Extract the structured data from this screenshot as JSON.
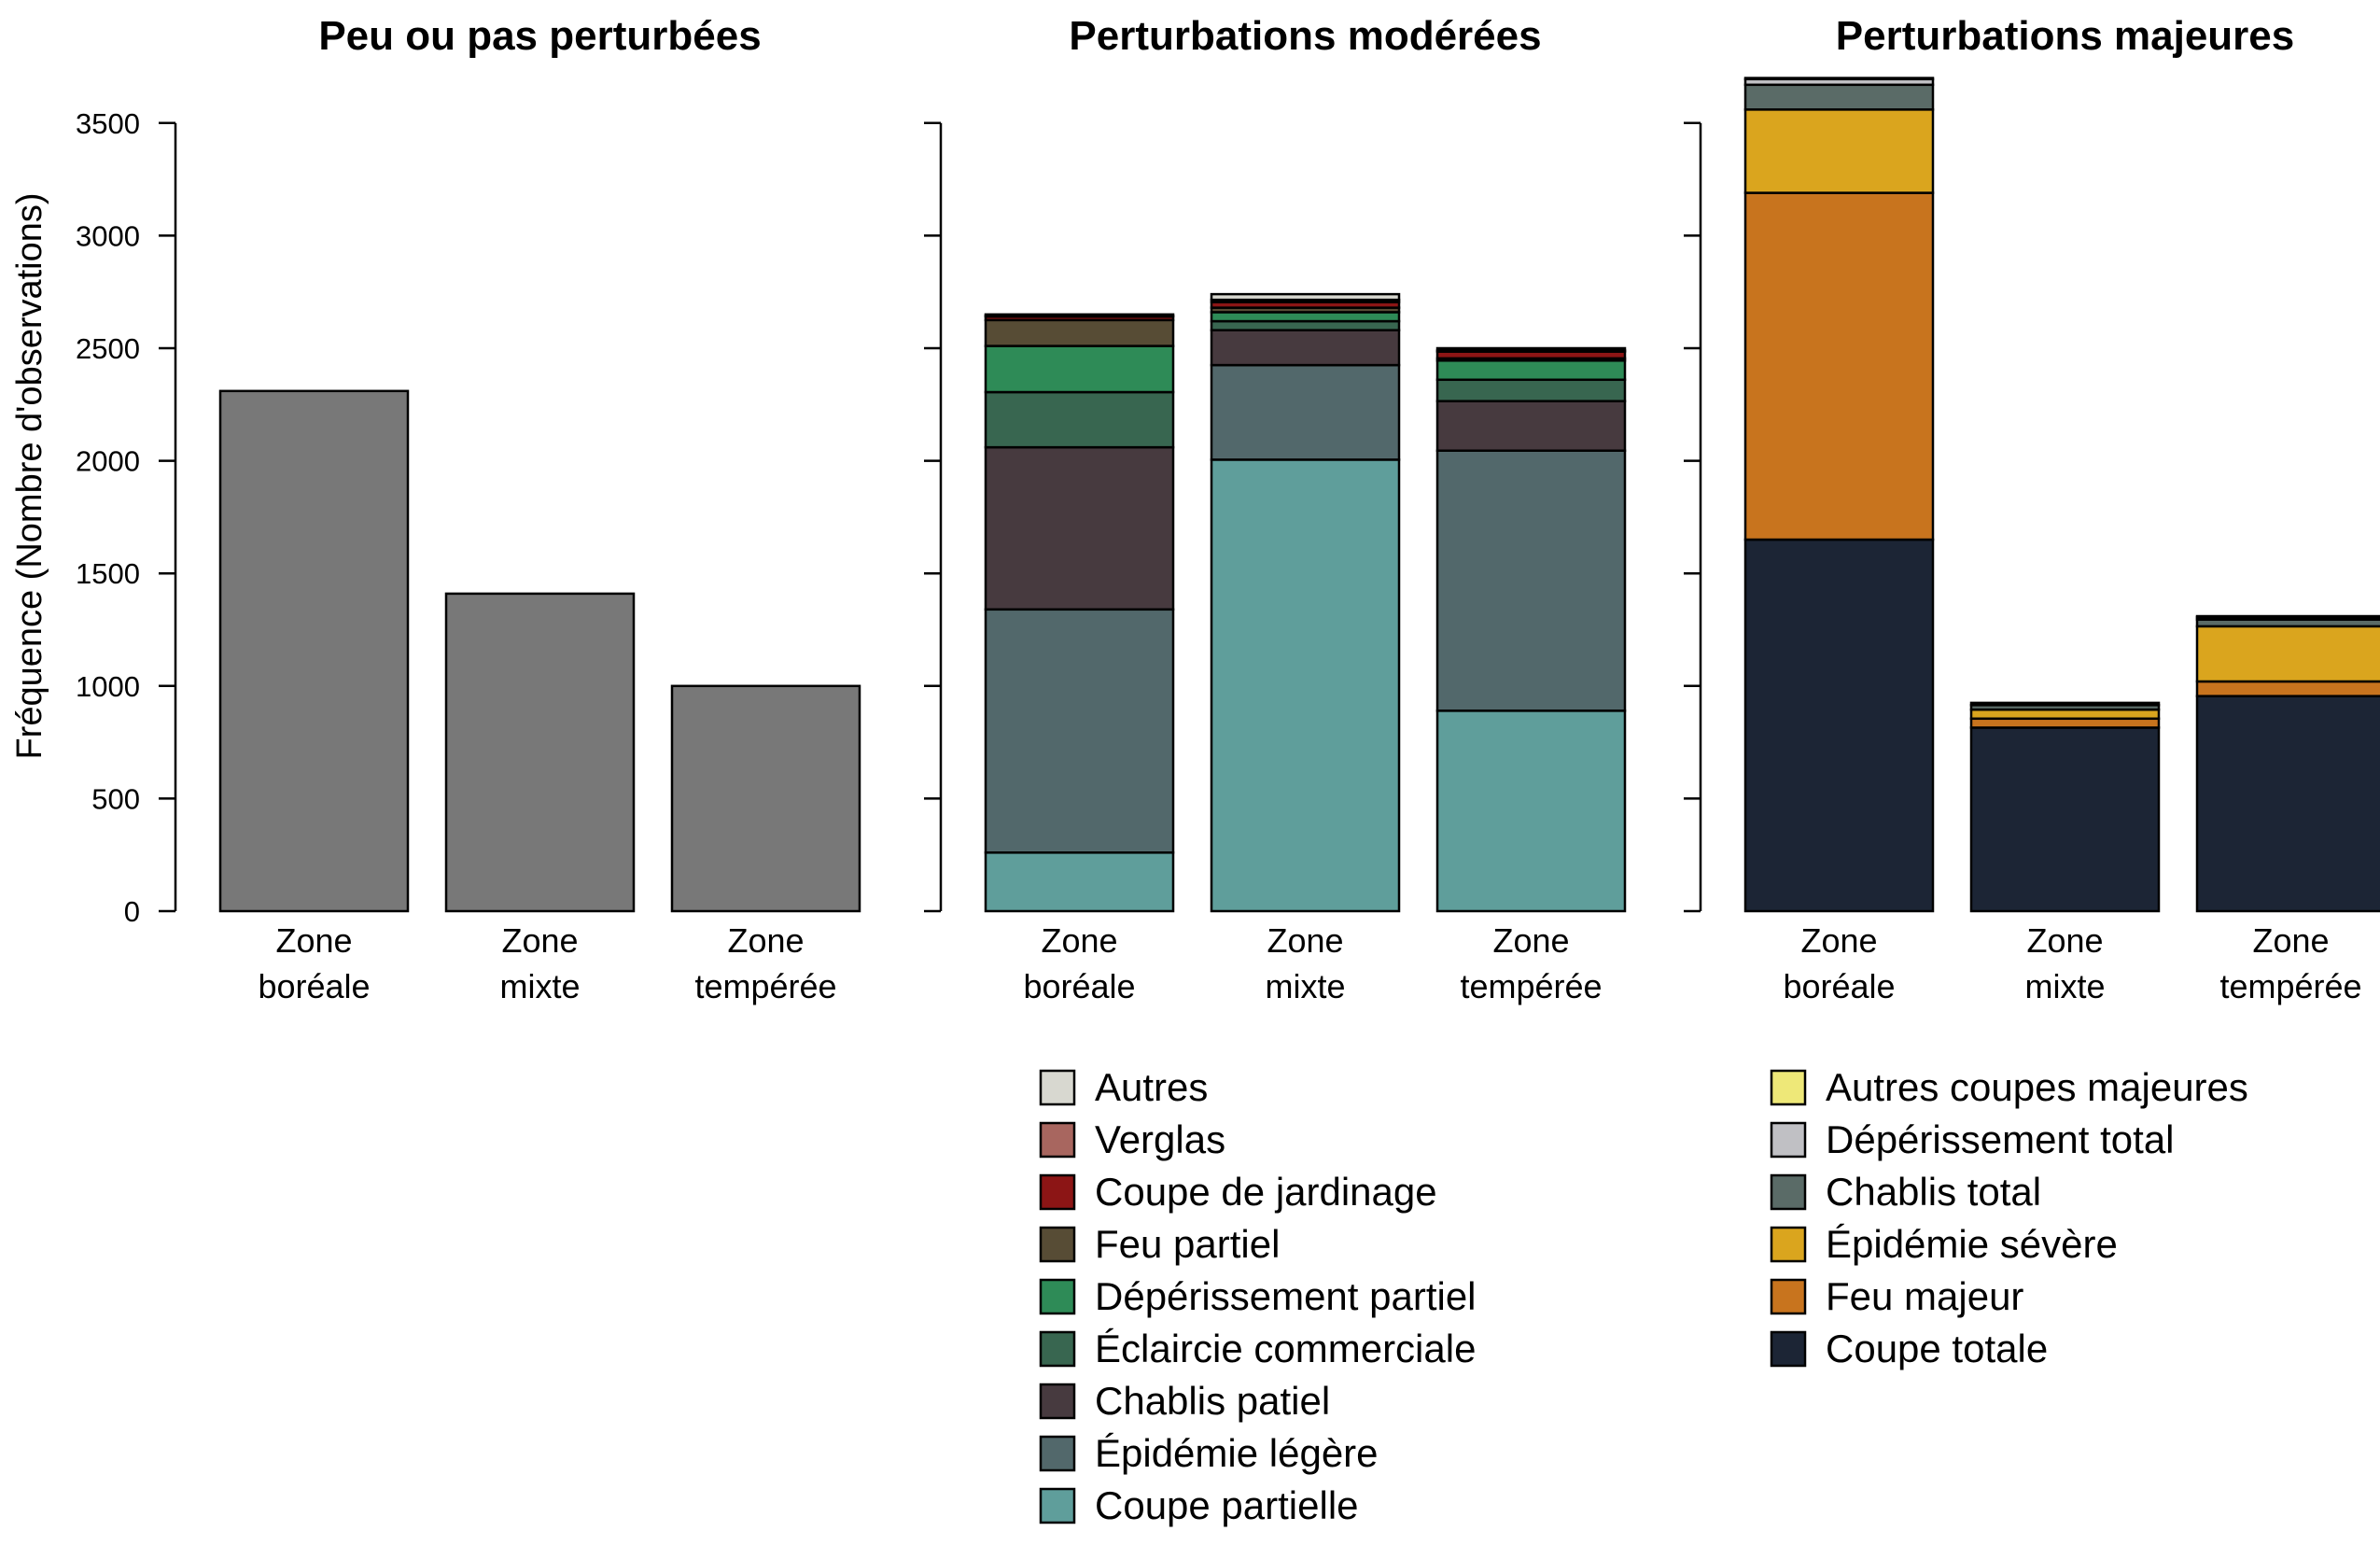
{
  "chart_data": {
    "type": "bar",
    "stacked": true,
    "ylabel": "Fréquence (Nombre d'observations)",
    "ylim": [
      0,
      3700
    ],
    "yticks": [
      0,
      500,
      1000,
      1500,
      2000,
      2500,
      3000,
      3500
    ],
    "grid": false,
    "categories": [
      [
        "Zone",
        "boréale"
      ],
      [
        "Zone",
        "mixte"
      ],
      [
        "Zone",
        "tempérée"
      ]
    ],
    "panels": [
      {
        "title": "Peu ou pas perturbées",
        "series": [
          {
            "color": "#787878",
            "values": [
              2310,
              1410,
              1000
            ]
          }
        ]
      },
      {
        "title": "Perturbations modérées",
        "series": [
          {
            "name": "Coupe partielle",
            "color": "#5f9e9b",
            "values": [
              260,
              2005,
              890
            ]
          },
          {
            "name": "Épidémie légère",
            "color": "#52686b",
            "values": [
              1080,
              420,
              1155
            ]
          },
          {
            "name": "Chablis patiel",
            "color": "#473a3f",
            "values": [
              720,
              155,
              220
            ]
          },
          {
            "name": "Éclaircie commerciale",
            "color": "#386650",
            "values": [
              245,
              40,
              95
            ]
          },
          {
            "name": "Dépérissement partiel",
            "color": "#2e8b57",
            "values": [
              205,
              40,
              85
            ]
          },
          {
            "name": "Feu partiel",
            "color": "#574c35",
            "values": [
              115,
              20,
              10
            ]
          },
          {
            "name": "Coupe de jardinage",
            "color": "#8c1515",
            "values": [
              15,
              25,
              30
            ]
          },
          {
            "name": "Verglas",
            "color": "#a8665f",
            "values": [
              5,
              10,
              5
            ]
          },
          {
            "name": "Autres",
            "color": "#d8d8d0",
            "values": [
              5,
              25,
              10
            ]
          }
        ]
      },
      {
        "title": "Perturbations majeures",
        "series": [
          {
            "name": "Coupe totale",
            "color": "#1c2535",
            "values": [
              1650,
              815,
              955
            ]
          },
          {
            "name": "Feu majeur",
            "color": "#c8741e",
            "values": [
              1540,
              40,
              65
            ]
          },
          {
            "name": "Épidémie sévère",
            "color": "#daa51e",
            "values": [
              370,
              40,
              245
            ]
          },
          {
            "name": "Chablis total",
            "color": "#5a6b67",
            "values": [
              110,
              20,
              30
            ]
          },
          {
            "name": "Dépérissement total",
            "color": "#c0c0c4",
            "values": [
              25,
              10,
              10
            ]
          },
          {
            "name": "Autres coupes majeures",
            "color": "#eee878",
            "values": [
              5,
              0,
              5
            ]
          }
        ]
      }
    ],
    "legend": [
      {
        "placement": "bottom-center",
        "entries": [
          {
            "label": "Autres",
            "color": "#d8d8d0"
          },
          {
            "label": "Verglas",
            "color": "#a8665f"
          },
          {
            "label": "Coupe de jardinage",
            "color": "#8c1515"
          },
          {
            "label": "Feu partiel",
            "color": "#574c35"
          },
          {
            "label": "Dépérissement partiel",
            "color": "#2e8b57"
          },
          {
            "label": "Éclaircie commerciale",
            "color": "#386650"
          },
          {
            "label": "Chablis patiel",
            "color": "#473a3f"
          },
          {
            "label": "Épidémie légère",
            "color": "#52686b"
          },
          {
            "label": "Coupe partielle",
            "color": "#5f9e9b"
          }
        ]
      },
      {
        "placement": "bottom-right",
        "entries": [
          {
            "label": "Autres coupes majeures",
            "color": "#eee878"
          },
          {
            "label": "Dépérissement total",
            "color": "#c0c0c4"
          },
          {
            "label": "Chablis total",
            "color": "#5a6b67"
          },
          {
            "label": "Épidémie sévère",
            "color": "#daa51e"
          },
          {
            "label": "Feu majeur",
            "color": "#c8741e"
          },
          {
            "label": "Coupe totale",
            "color": "#1c2535"
          }
        ]
      }
    ]
  }
}
